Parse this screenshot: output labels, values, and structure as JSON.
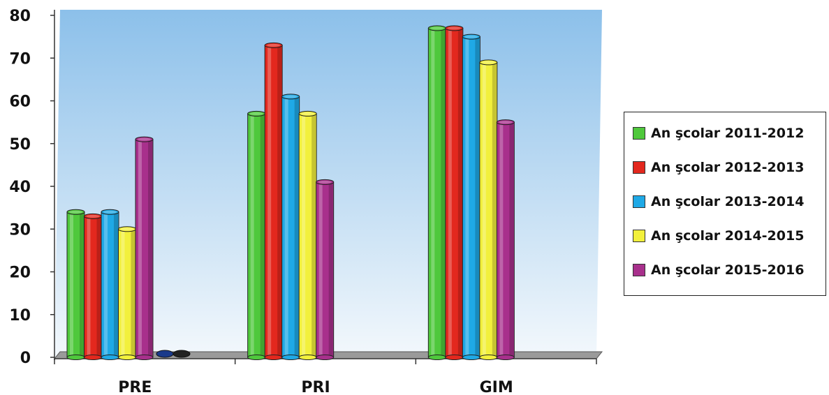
{
  "chart_data": {
    "type": "bar",
    "categories": [
      "PRE",
      "PRI",
      "GIM"
    ],
    "series": [
      {
        "name": "An şcolar 2011-2012",
        "color": "#4fc83c",
        "values": [
          34,
          57,
          77
        ]
      },
      {
        "name": "An şcolar 2012-2013",
        "color": "#e3281e",
        "values": [
          33,
          73,
          77
        ]
      },
      {
        "name": "An şcolar 2013-2014",
        "color": "#1fa9e6",
        "values": [
          34,
          61,
          75
        ]
      },
      {
        "name": "An şcolar 2014-2015",
        "color": "#f2f03c",
        "values": [
          30,
          57,
          69
        ]
      },
      {
        "name": "An şcolar 2015-2016",
        "color": "#a8308c",
        "values": [
          51,
          41,
          55
        ]
      }
    ],
    "y_ticks": [
      "0",
      "10",
      "20",
      "30",
      "40",
      "50",
      "60",
      "70",
      "80"
    ],
    "ylim": [
      0,
      80
    ],
    "grid": false,
    "legend_position": "right"
  }
}
